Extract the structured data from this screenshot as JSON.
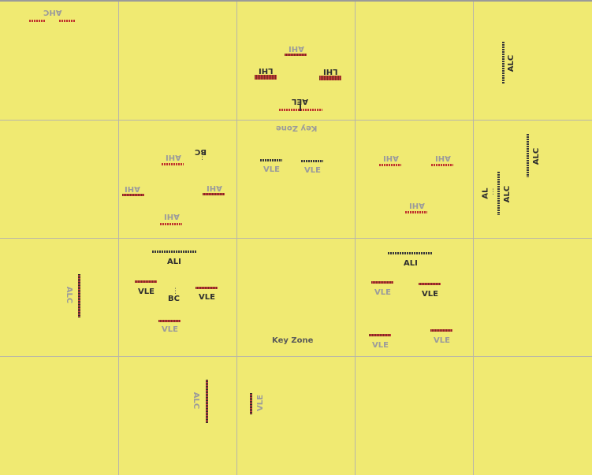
{
  "labels": {
    "ahc": "AHC",
    "ahi_top": "AHI",
    "lhi_left": "LHI",
    "lhi_right": "LHI",
    "ael": "AEL",
    "key_zone_top": "Key Zone",
    "alc_r1": "ALC",
    "bc_1": "BC",
    "ahi_r2_1": "AHI",
    "ahi_r2_2": "AHI",
    "ahi_r2_3": "AHI",
    "ahi_r2_4": "AHI",
    "vle_r2_1": "VLE",
    "vle_r2_2": "VLE",
    "ahi_r2_5": "AHI",
    "ahi_r2_6": "AHI",
    "ahi_r2_7": "AHI",
    "alc_r2_1": "ALC",
    "al_r2": "AL",
    "alc_r2_2": "ALC",
    "alc_r3_1": "ALC",
    "ali_r3_1": "ALI",
    "vle_r3_1": "VLE",
    "bc_2": "BC",
    "vle_r3_2": "VLE",
    "vle_r3_3": "VLE",
    "key_zone_bottom": "Key Zone",
    "ali_r3_2": "ALI",
    "vle_r3_4": "VLE",
    "vle_r3_5": "VLE",
    "vle_r3_6": "VLE",
    "vle_r3_7": "VLE",
    "alc_r4": "ALC",
    "vle_r4": "VLE"
  },
  "colors": {
    "background": "#f0ea72",
    "grid": "#b9b6a8",
    "accent_red": "#c0322d",
    "dark_text": "#2e2e2e",
    "grey_text": "#9b9b9b"
  }
}
